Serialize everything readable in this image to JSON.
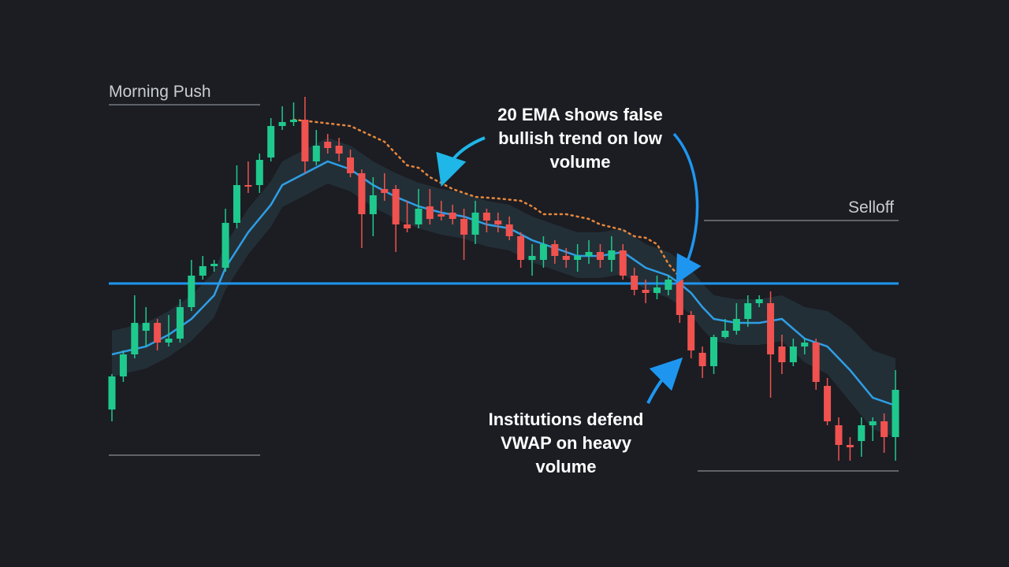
{
  "chart_data": {
    "type": "candlestick",
    "ylim": [
      0,
      720
    ],
    "xlim": [
      0,
      69
    ],
    "background": "#1b1d23",
    "up_color": "#1fc98e",
    "down_color": "#f0524f",
    "open": [
      200,
      242,
      270,
      300,
      310,
      285,
      290,
      330,
      370,
      382,
      380,
      437,
      485,
      485,
      520,
      560,
      565,
      568,
      515,
      540,
      535,
      520,
      500,
      448,
      480,
      480,
      435,
      435,
      458,
      448,
      450,
      442,
      422,
      450,
      440,
      435,
      420,
      390,
      390,
      410,
      395,
      390,
      395,
      400,
      390,
      402,
      370,
      352,
      348,
      352,
      365,
      320,
      272,
      255,
      292,
      300,
      315,
      335,
      335,
      280,
      260,
      280,
      285,
      230,
      180,
      155,
      160,
      180,
      185,
      165
    ],
    "high": [
      245,
      275,
      345,
      330,
      315,
      320,
      340,
      390,
      395,
      390,
      455,
      510,
      515,
      525,
      570,
      585,
      590,
      597,
      555,
      550,
      545,
      530,
      505,
      495,
      500,
      485,
      465,
      480,
      480,
      465,
      460,
      455,
      465,
      455,
      450,
      445,
      425,
      410,
      420,
      415,
      405,
      410,
      415,
      410,
      420,
      410,
      380,
      365,
      370,
      370,
      375,
      325,
      280,
      295,
      315,
      335,
      345,
      345,
      350,
      295,
      290,
      290,
      290,
      240,
      190,
      165,
      190,
      190,
      195,
      250
    ],
    "low": [
      185,
      235,
      265,
      280,
      275,
      280,
      285,
      325,
      365,
      375,
      375,
      430,
      475,
      475,
      515,
      555,
      560,
      500,
      510,
      525,
      515,
      495,
      405,
      420,
      465,
      400,
      425,
      430,
      435,
      440,
      435,
      390,
      410,
      425,
      425,
      415,
      380,
      370,
      380,
      385,
      380,
      375,
      385,
      380,
      375,
      365,
      345,
      335,
      340,
      345,
      310,
      265,
      240,
      245,
      290,
      295,
      305,
      330,
      215,
      245,
      255,
      270,
      225,
      180,
      135,
      135,
      140,
      160,
      145,
      135
    ],
    "close": [
      242,
      270,
      310,
      310,
      285,
      290,
      330,
      370,
      382,
      385,
      437,
      485,
      483,
      517,
      560,
      565,
      568,
      515,
      535,
      532,
      525,
      500,
      448,
      472,
      475,
      435,
      430,
      455,
      442,
      445,
      442,
      422,
      450,
      440,
      435,
      420,
      390,
      395,
      410,
      395,
      390,
      395,
      400,
      390,
      402,
      370,
      352,
      348,
      355,
      365,
      320,
      275,
      255,
      292,
      300,
      315,
      335,
      340,
      270,
      260,
      280,
      285,
      235,
      185,
      155,
      152,
      180,
      185,
      165,
      225
    ],
    "band": {
      "color": "#27363d",
      "x": [
        0,
        3,
        5,
        7,
        9,
        10,
        12,
        14,
        15,
        17,
        19,
        21,
        23,
        25,
        27,
        29,
        31,
        33,
        35,
        37,
        39,
        41,
        43,
        45,
        47,
        49,
        50,
        51,
        52,
        53,
        55,
        57,
        59,
        61,
        63,
        65,
        67,
        69
      ],
      "upper": [
        300,
        310,
        325,
        345,
        375,
        410,
        455,
        490,
        515,
        530,
        545,
        535,
        515,
        500,
        488,
        480,
        475,
        465,
        460,
        445,
        435,
        425,
        425,
        430,
        410,
        400,
        390,
        378,
        360,
        345,
        340,
        340,
        345,
        330,
        325,
        305,
        275,
        265
      ],
      "lower": [
        242,
        252,
        267,
        287,
        317,
        352,
        397,
        432,
        457,
        472,
        487,
        477,
        457,
        442,
        430,
        422,
        417,
        407,
        402,
        387,
        377,
        367,
        367,
        372,
        352,
        342,
        332,
        320,
        302,
        287,
        282,
        282,
        287,
        260,
        245,
        210,
        175,
        165
      ]
    },
    "ema": {
      "color": "#2e9ee6",
      "x": [
        0,
        3,
        5,
        7,
        9,
        10,
        12,
        14,
        15,
        17,
        19,
        21,
        23,
        25,
        27,
        29,
        31,
        33,
        35,
        37,
        39,
        41,
        43,
        45,
        47,
        49,
        50,
        51,
        52,
        53,
        55,
        57,
        59,
        61,
        63,
        65,
        67,
        69
      ],
      "values": [
        270,
        280,
        295,
        315,
        345,
        380,
        425,
        460,
        485,
        500,
        515,
        505,
        485,
        470,
        458,
        450,
        445,
        435,
        430,
        415,
        405,
        395,
        395,
        400,
        380,
        370,
        360,
        348,
        330,
        315,
        310,
        310,
        315,
        290,
        280,
        250,
        215,
        205
      ]
    },
    "dotted": {
      "color": "#e8873a",
      "x": [
        16,
        18,
        21,
        24,
        25,
        26,
        27,
        28,
        30,
        32,
        34,
        36,
        37,
        38,
        40,
        42,
        43,
        45,
        46,
        47,
        48,
        49,
        50
      ],
      "values": [
        568,
        565,
        560,
        540,
        525,
        510,
        507,
        495,
        480,
        470,
        468,
        465,
        458,
        448,
        448,
        442,
        435,
        428,
        420,
        418,
        410,
        385,
        368
      ]
    },
    "vwap": {
      "value": 360,
      "color": "#1e96f0"
    },
    "levels": [
      {
        "label": "Morning Push",
        "top": 587,
        "bottom": 142
      },
      {
        "label": "Selloff",
        "top": 440,
        "bottom": 122
      }
    ],
    "annotations": [
      {
        "lines": [
          "20 EMA shows false",
          "bullish trend on low",
          "volume"
        ]
      },
      {
        "lines": [
          "Institutions defend",
          "VWAP on heavy",
          "volume"
        ]
      }
    ]
  }
}
